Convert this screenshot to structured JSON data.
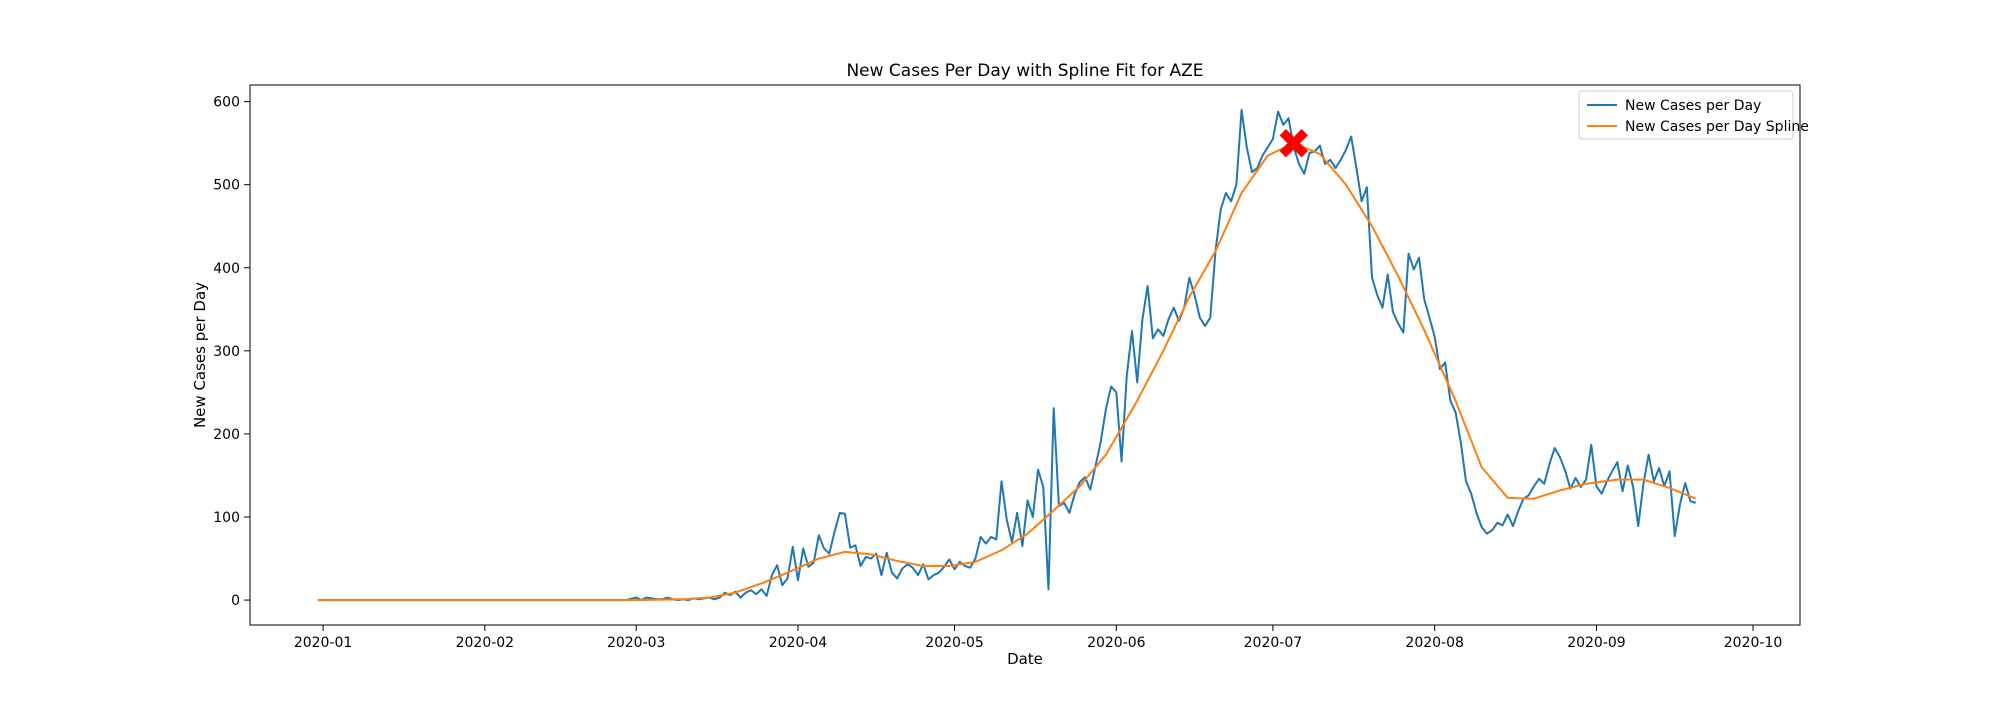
{
  "chart_data": {
    "type": "line",
    "title": "New Cases Per Day with Spline Fit for AZE",
    "xlabel": "Date",
    "ylabel": "New Cases per Day",
    "xlim": [
      "2019-12-18",
      "2020-10-10"
    ],
    "ylim": [
      -30,
      620
    ],
    "x_ticks": [
      "2020-01",
      "2020-02",
      "2020-03",
      "2020-04",
      "2020-05",
      "2020-06",
      "2020-07",
      "2020-08",
      "2020-09",
      "2020-10"
    ],
    "y_ticks": [
      0,
      100,
      200,
      300,
      400,
      500,
      600
    ],
    "grid": false,
    "legend_position": "top-right",
    "colors": {
      "raw": "#1f77b4",
      "spline": "#ff7f0e",
      "peak_marker": "#ff0000"
    },
    "series": [
      {
        "name": "New Cases per Day",
        "x": [
          "2019-12-31",
          "2020-01-15",
          "2020-02-01",
          "2020-02-15",
          "2020-02-28",
          "2020-03-01",
          "2020-03-02",
          "2020-03-03",
          "2020-03-04",
          "2020-03-05",
          "2020-03-06",
          "2020-03-07",
          "2020-03-08",
          "2020-03-09",
          "2020-03-10",
          "2020-03-11",
          "2020-03-12",
          "2020-03-13",
          "2020-03-14",
          "2020-03-15",
          "2020-03-16",
          "2020-03-17",
          "2020-03-18",
          "2020-03-19",
          "2020-03-20",
          "2020-03-21",
          "2020-03-22",
          "2020-03-23",
          "2020-03-24",
          "2020-03-25",
          "2020-03-26",
          "2020-03-27",
          "2020-03-28",
          "2020-03-29",
          "2020-03-30",
          "2020-03-31",
          "2020-04-01",
          "2020-04-02",
          "2020-04-03",
          "2020-04-04",
          "2020-04-05",
          "2020-04-06",
          "2020-04-07",
          "2020-04-08",
          "2020-04-09",
          "2020-04-10",
          "2020-04-11",
          "2020-04-12",
          "2020-04-13",
          "2020-04-14",
          "2020-04-15",
          "2020-04-16",
          "2020-04-17",
          "2020-04-18",
          "2020-04-19",
          "2020-04-20",
          "2020-04-21",
          "2020-04-22",
          "2020-04-23",
          "2020-04-24",
          "2020-04-25",
          "2020-04-26",
          "2020-04-27",
          "2020-04-28",
          "2020-04-29",
          "2020-04-30",
          "2020-05-01",
          "2020-05-02",
          "2020-05-03",
          "2020-05-04",
          "2020-05-05",
          "2020-05-06",
          "2020-05-07",
          "2020-05-08",
          "2020-05-09",
          "2020-05-10",
          "2020-05-11",
          "2020-05-12",
          "2020-05-13",
          "2020-05-14",
          "2020-05-15",
          "2020-05-16",
          "2020-05-17",
          "2020-05-18",
          "2020-05-19",
          "2020-05-20",
          "2020-05-21",
          "2020-05-22",
          "2020-05-23",
          "2020-05-24",
          "2020-05-25",
          "2020-05-26",
          "2020-05-27",
          "2020-05-28",
          "2020-05-29",
          "2020-05-30",
          "2020-05-31",
          "2020-06-01",
          "2020-06-02",
          "2020-06-03",
          "2020-06-04",
          "2020-06-05",
          "2020-06-06",
          "2020-06-07",
          "2020-06-08",
          "2020-06-09",
          "2020-06-10",
          "2020-06-11",
          "2020-06-12",
          "2020-06-13",
          "2020-06-14",
          "2020-06-15",
          "2020-06-16",
          "2020-06-17",
          "2020-06-18",
          "2020-06-19",
          "2020-06-20",
          "2020-06-21",
          "2020-06-22",
          "2020-06-23",
          "2020-06-24",
          "2020-06-25",
          "2020-06-26",
          "2020-06-27",
          "2020-06-28",
          "2020-06-29",
          "2020-06-30",
          "2020-07-01",
          "2020-07-02",
          "2020-07-03",
          "2020-07-04",
          "2020-07-05",
          "2020-07-06",
          "2020-07-07",
          "2020-07-08",
          "2020-07-09",
          "2020-07-10",
          "2020-07-11",
          "2020-07-12",
          "2020-07-13",
          "2020-07-14",
          "2020-07-15",
          "2020-07-16",
          "2020-07-17",
          "2020-07-18",
          "2020-07-19",
          "2020-07-20",
          "2020-07-21",
          "2020-07-22",
          "2020-07-23",
          "2020-07-24",
          "2020-07-25",
          "2020-07-26",
          "2020-07-27",
          "2020-07-28",
          "2020-07-29",
          "2020-07-30",
          "2020-07-31",
          "2020-08-01",
          "2020-08-02",
          "2020-08-03",
          "2020-08-04",
          "2020-08-05",
          "2020-08-06",
          "2020-08-07",
          "2020-08-08",
          "2020-08-09",
          "2020-08-10",
          "2020-08-11",
          "2020-08-12",
          "2020-08-13",
          "2020-08-14",
          "2020-08-15",
          "2020-08-16",
          "2020-08-17",
          "2020-08-18",
          "2020-08-19",
          "2020-08-20",
          "2020-08-21",
          "2020-08-22",
          "2020-08-23",
          "2020-08-24",
          "2020-08-25",
          "2020-08-26",
          "2020-08-27",
          "2020-08-28",
          "2020-08-29",
          "2020-08-30",
          "2020-08-31",
          "2020-09-01",
          "2020-09-02",
          "2020-09-03",
          "2020-09-04",
          "2020-09-05",
          "2020-09-06",
          "2020-09-07",
          "2020-09-08",
          "2020-09-09",
          "2020-09-10",
          "2020-09-11",
          "2020-09-12",
          "2020-09-13",
          "2020-09-14",
          "2020-09-15",
          "2020-09-16",
          "2020-09-17",
          "2020-09-18",
          "2020-09-19",
          "2020-09-20"
        ],
        "y": [
          0,
          0,
          0,
          0,
          0,
          3,
          0,
          3,
          2,
          1,
          1,
          3,
          1,
          0,
          1,
          0,
          2,
          1,
          2,
          3,
          1,
          3,
          9,
          6,
          10,
          3,
          9,
          12,
          7,
          13,
          5,
          30,
          42,
          18,
          26,
          64,
          24,
          62,
          40,
          45,
          78,
          62,
          56,
          82,
          105,
          104,
          63,
          66,
          41,
          52,
          50,
          56,
          30,
          57,
          33,
          26,
          38,
          43,
          39,
          30,
          43,
          25,
          30,
          33,
          40,
          49,
          37,
          46,
          41,
          39,
          50,
          76,
          68,
          76,
          73,
          143,
          97,
          70,
          105,
          65,
          120,
          100,
          157,
          136,
          13,
          231,
          113,
          117,
          105,
          127,
          142,
          148,
          133,
          161,
          190,
          230,
          257,
          250,
          167,
          270,
          324,
          262,
          338,
          378,
          315,
          326,
          318,
          338,
          352,
          336,
          352,
          388,
          367,
          340,
          330,
          340,
          420,
          470,
          490,
          480,
          500,
          590,
          545,
          515,
          520,
          535,
          545,
          555,
          588,
          572,
          580,
          545,
          525,
          513,
          538,
          540,
          547,
          525,
          530,
          520,
          530,
          542,
          558,
          520,
          480,
          497,
          388,
          367,
          352,
          392,
          347,
          333,
          322,
          417,
          398,
          412,
          362,
          340,
          317,
          278,
          286,
          240,
          226,
          190,
          143,
          128,
          105,
          88,
          80,
          84,
          93,
          90,
          103,
          89,
          107,
          122,
          126,
          137,
          146,
          140,
          164,
          183,
          172,
          156,
          134,
          147,
          136,
          145,
          187,
          137,
          128,
          143,
          155,
          166,
          131,
          162,
          137,
          89,
          140,
          175,
          143,
          159,
          137,
          155,
          77,
          115,
          141,
          119,
          117
        ]
      },
      {
        "name": "New Cases per Day Spline",
        "x": [
          "2019-12-31",
          "2020-01-15",
          "2020-02-01",
          "2020-02-15",
          "2020-03-01",
          "2020-03-10",
          "2020-03-15",
          "2020-03-20",
          "2020-03-25",
          "2020-03-30",
          "2020-04-05",
          "2020-04-10",
          "2020-04-15",
          "2020-04-20",
          "2020-04-25",
          "2020-04-30",
          "2020-05-05",
          "2020-05-10",
          "2020-05-15",
          "2020-05-20",
          "2020-05-25",
          "2020-05-30",
          "2020-06-05",
          "2020-06-10",
          "2020-06-15",
          "2020-06-20",
          "2020-06-25",
          "2020-06-30",
          "2020-07-05",
          "2020-07-10",
          "2020-07-15",
          "2020-07-20",
          "2020-07-25",
          "2020-07-30",
          "2020-08-05",
          "2020-08-10",
          "2020-08-15",
          "2020-08-20",
          "2020-08-25",
          "2020-08-30",
          "2020-09-05",
          "2020-09-10",
          "2020-09-15",
          "2020-09-20"
        ],
        "y": [
          0,
          0,
          0,
          0,
          0,
          1,
          3,
          9,
          20,
          33,
          50,
          58,
          55,
          47,
          41,
          41,
          46,
          60,
          80,
          108,
          137,
          175,
          240,
          300,
          365,
          420,
          490,
          535,
          550,
          537,
          500,
          450,
          390,
          325,
          240,
          160,
          123,
          122,
          132,
          140,
          145,
          145,
          135,
          122
        ]
      }
    ],
    "annotations": [
      {
        "type": "marker",
        "shape": "X",
        "x": "2020-07-05",
        "y": 550,
        "meaning": "peak"
      }
    ]
  }
}
